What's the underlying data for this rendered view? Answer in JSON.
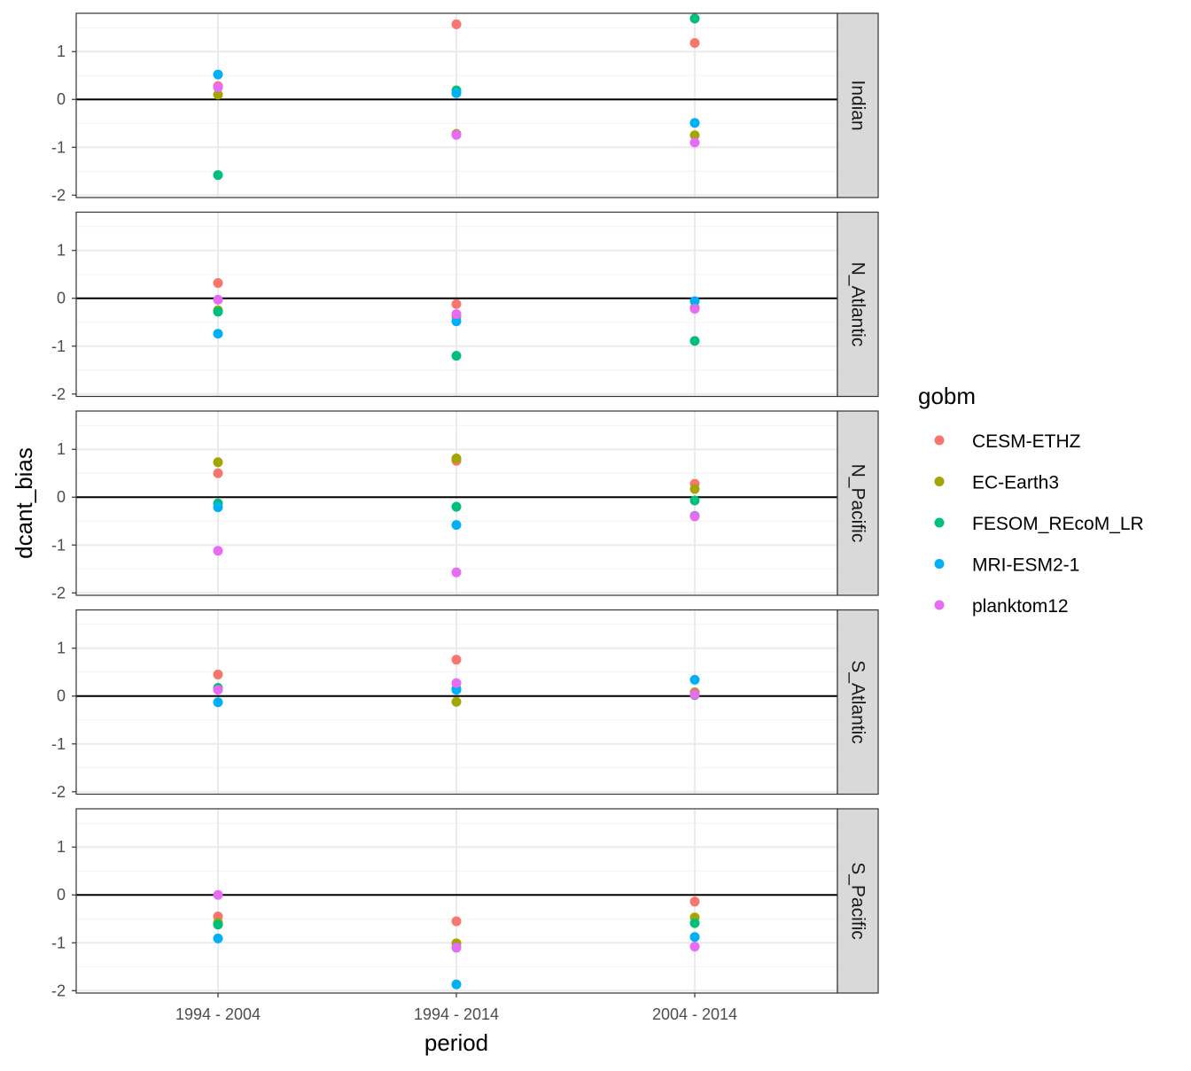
{
  "chart_data": {
    "type": "scatter",
    "facet_by": "basin",
    "xlabel": "period",
    "ylabel": "dcant_bias",
    "categories": [
      "1994 - 2004",
      "1994 - 2014",
      "2004 - 2014"
    ],
    "ylim": [
      -2.05,
      1.8
    ],
    "yticks": [
      -2,
      -1,
      0,
      1
    ],
    "reference_line_y": 0,
    "grid": true,
    "legend": {
      "title": "gobm",
      "placement": "right",
      "entries": [
        {
          "name": "CESM-ETHZ",
          "color": "#F8766D"
        },
        {
          "name": "EC-Earth3",
          "color": "#A3A500"
        },
        {
          "name": "FESOM_REcoM_LR",
          "color": "#00BF7D"
        },
        {
          "name": "MRI-ESM2-1",
          "color": "#00B0F6"
        },
        {
          "name": "planktom12",
          "color": "#E76BF3"
        }
      ]
    },
    "panels": [
      {
        "label": "Indian",
        "series": [
          {
            "name": "CESM-ETHZ",
            "values": [
              0.28,
              1.57,
              1.18
            ]
          },
          {
            "name": "EC-Earth3",
            "values": [
              0.1,
              -0.72,
              -0.75
            ]
          },
          {
            "name": "FESOM_REcoM_LR",
            "values": [
              -1.58,
              0.19,
              1.69
            ]
          },
          {
            "name": "MRI-ESM2-1",
            "values": [
              0.52,
              0.13,
              -0.49
            ]
          },
          {
            "name": "planktom12",
            "values": [
              0.25,
              -0.74,
              -0.9
            ]
          }
        ]
      },
      {
        "label": "N_Atlantic",
        "series": [
          {
            "name": "CESM-ETHZ",
            "values": [
              0.32,
              -0.12,
              -0.2
            ]
          },
          {
            "name": "EC-Earth3",
            "values": [
              -0.25,
              -0.38,
              -0.2
            ]
          },
          {
            "name": "FESOM_REcoM_LR",
            "values": [
              -0.28,
              -1.2,
              -0.89
            ]
          },
          {
            "name": "MRI-ESM2-1",
            "values": [
              -0.74,
              -0.48,
              -0.06
            ]
          },
          {
            "name": "planktom12",
            "values": [
              -0.03,
              -0.33,
              -0.22
            ]
          }
        ]
      },
      {
        "label": "N_Pacific",
        "series": [
          {
            "name": "CESM-ETHZ",
            "values": [
              0.5,
              0.76,
              0.28
            ]
          },
          {
            "name": "EC-Earth3",
            "values": [
              0.73,
              0.81,
              0.17
            ]
          },
          {
            "name": "FESOM_REcoM_LR",
            "values": [
              -0.13,
              -0.2,
              -0.07
            ]
          },
          {
            "name": "MRI-ESM2-1",
            "values": [
              -0.21,
              -0.58,
              -0.39
            ]
          },
          {
            "name": "planktom12",
            "values": [
              -1.12,
              -1.57,
              -0.4
            ]
          }
        ]
      },
      {
        "label": "S_Atlantic",
        "series": [
          {
            "name": "CESM-ETHZ",
            "values": [
              0.45,
              0.76,
              0.08
            ]
          },
          {
            "name": "EC-Earth3",
            "values": [
              0.14,
              -0.12,
              0.06
            ]
          },
          {
            "name": "FESOM_REcoM_LR",
            "values": [
              0.17,
              0.15,
              0.02
            ]
          },
          {
            "name": "MRI-ESM2-1",
            "values": [
              -0.13,
              0.13,
              0.34
            ]
          },
          {
            "name": "planktom12",
            "values": [
              0.13,
              0.27,
              0.03
            ]
          }
        ]
      },
      {
        "label": "S_Pacific",
        "series": [
          {
            "name": "CESM-ETHZ",
            "values": [
              -0.45,
              -0.55,
              -0.14
            ]
          },
          {
            "name": "EC-Earth3",
            "values": [
              -0.58,
              -1.01,
              -0.47
            ]
          },
          {
            "name": "FESOM_REcoM_LR",
            "values": [
              -0.62,
              -1.1,
              -0.59
            ]
          },
          {
            "name": "MRI-ESM2-1",
            "values": [
              -0.91,
              -1.87,
              -0.88
            ]
          },
          {
            "name": "planktom12",
            "values": [
              0.0,
              -1.1,
              -1.08
            ]
          }
        ]
      }
    ]
  }
}
